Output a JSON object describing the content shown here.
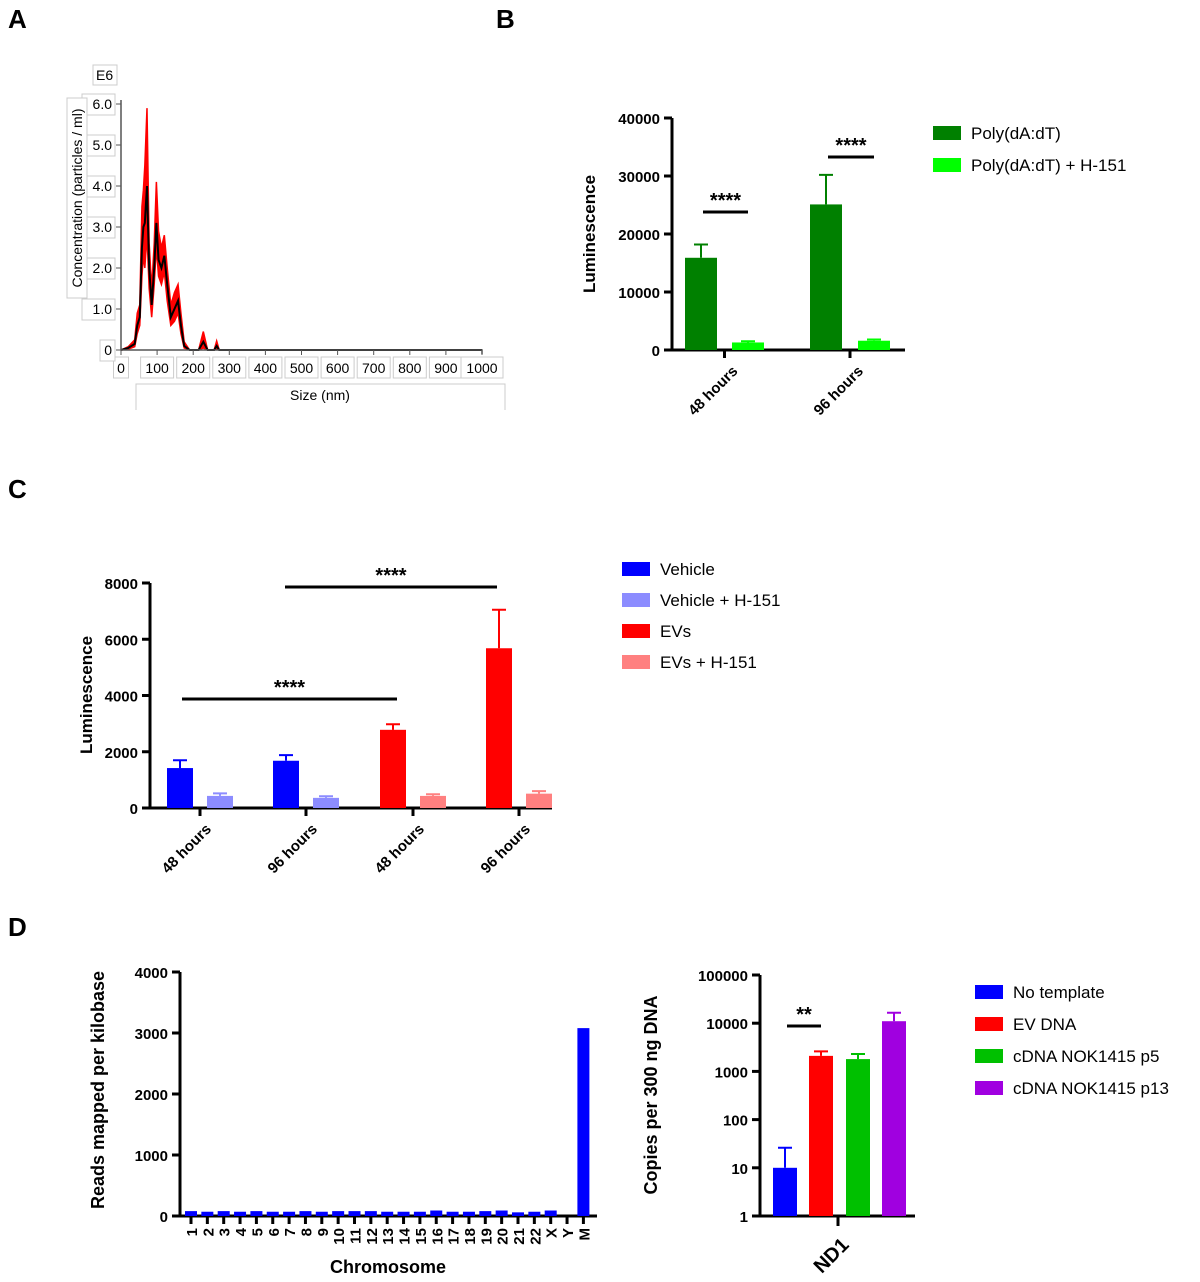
{
  "panels": {
    "A": "A",
    "B": "B",
    "C": "C",
    "D": "D"
  },
  "chart_data": [
    {
      "id": "A",
      "type": "area",
      "multiplier": "E6",
      "xlabel": "Size (nm)",
      "ylabel": "Concentration (particles / ml)",
      "xlim": [
        0,
        1000
      ],
      "ylim": [
        0,
        6.0
      ],
      "xticks": [
        "0",
        "100",
        "200",
        "300",
        "400",
        "500",
        "600",
        "700",
        "800",
        "900",
        "1000"
      ],
      "yticks": [
        "0",
        "1.0",
        "2.0",
        "3.0",
        "4.0",
        "5.0",
        "6.0"
      ],
      "line_color": "#000000",
      "band_color": "#ff0000",
      "x": [
        0,
        20,
        38,
        45,
        52,
        58,
        62,
        66,
        72,
        78,
        85,
        92,
        98,
        104,
        112,
        120,
        128,
        138,
        148,
        158,
        166,
        175,
        190,
        215,
        228,
        240,
        258,
        265,
        272,
        1000
      ],
      "mean": [
        0,
        0.05,
        0.15,
        0.6,
        0.8,
        2.5,
        3.0,
        3.1,
        4.0,
        2.0,
        1.1,
        2.0,
        3.1,
        2.2,
        2.0,
        2.3,
        1.6,
        0.8,
        1.0,
        1.2,
        0.6,
        0.1,
        0,
        0,
        0.2,
        0,
        0,
        0.1,
        0,
        0
      ],
      "upper": [
        0,
        0.08,
        0.25,
        0.9,
        1.1,
        3.5,
        3.9,
        4.5,
        5.9,
        2.6,
        1.5,
        2.6,
        4.1,
        2.9,
        2.5,
        2.8,
        2.0,
        1.1,
        1.4,
        1.6,
        0.9,
        0.2,
        0,
        0,
        0.45,
        0,
        0,
        0.22,
        0,
        0
      ],
      "lower": [
        0,
        0.02,
        0.08,
        0.4,
        0.6,
        1.8,
        2.3,
        2.0,
        2.8,
        1.5,
        0.8,
        1.6,
        2.5,
        1.8,
        1.6,
        1.9,
        1.2,
        0.6,
        0.7,
        0.9,
        0.4,
        0.05,
        0,
        0,
        0.05,
        0,
        0,
        0.02,
        0,
        0
      ]
    },
    {
      "id": "B",
      "type": "bar",
      "ylabel": "Luminescence",
      "ylim": [
        0,
        40000
      ],
      "yticks": [
        "0",
        "10000",
        "20000",
        "30000",
        "40000"
      ],
      "categories": [
        "48 hours",
        "96 hours"
      ],
      "series": [
        {
          "name": "Poly(dA:dT)",
          "color": "#008000",
          "values": [
            15900,
            25100
          ],
          "errors": [
            2300,
            5100
          ]
        },
        {
          "name": "Poly(dA:dT) + H-151",
          "color": "#00ff00",
          "values": [
            1300,
            1600
          ],
          "errors": [
            200,
            200
          ]
        }
      ],
      "significance": [
        {
          "label": "****",
          "between": [
            "48 hours"
          ]
        },
        {
          "label": "****",
          "between": [
            "96 hours"
          ]
        }
      ]
    },
    {
      "id": "C",
      "type": "bar",
      "ylabel": "Luminescence",
      "ylim": [
        0,
        8000
      ],
      "yticks": [
        "0",
        "2000",
        "4000",
        "6000",
        "8000"
      ],
      "categories": [
        "48 hours",
        "96 hours",
        "48 hours",
        "96 hours"
      ],
      "series": [
        {
          "name": "Vehicle",
          "color": "#0000ff"
        },
        {
          "name": "Vehicle + H-151",
          "color": "#8c8cff"
        },
        {
          "name": "EVs",
          "color": "#ff0000"
        },
        {
          "name": "EVs + H-151",
          "color": "#ff8080"
        }
      ],
      "bars": [
        {
          "series": 0,
          "value": 1420,
          "error": 280
        },
        {
          "series": 1,
          "value": 430,
          "error": 90
        },
        {
          "series": 0,
          "value": 1680,
          "error": 200
        },
        {
          "series": 1,
          "value": 360,
          "error": 60
        },
        {
          "series": 2,
          "value": 2780,
          "error": 200
        },
        {
          "series": 3,
          "value": 430,
          "error": 60
        },
        {
          "series": 2,
          "value": 5680,
          "error": 1370
        },
        {
          "series": 3,
          "value": 510,
          "error": 90
        }
      ],
      "significance": [
        {
          "label": "****",
          "from": "Vehicle 48 hours",
          "to": "EVs 48 hours"
        },
        {
          "label": "****",
          "from": "Vehicle 96 hours",
          "to": "EVs 96 hours"
        }
      ]
    },
    {
      "id": "D-left",
      "type": "bar",
      "xlabel": "Chromosome",
      "ylabel": "Reads mapped per kilobase",
      "ylim": [
        0,
        4000
      ],
      "yticks": [
        "0",
        "1000",
        "2000",
        "3000",
        "4000"
      ],
      "color": "#0000ff",
      "categories": [
        "1",
        "2",
        "3",
        "4",
        "5",
        "6",
        "7",
        "8",
        "9",
        "10",
        "11",
        "12",
        "13",
        "14",
        "15",
        "16",
        "17",
        "18",
        "19",
        "20",
        "21",
        "22",
        "X",
        "Y",
        "M"
      ],
      "values": [
        80,
        70,
        80,
        70,
        80,
        70,
        70,
        80,
        70,
        80,
        80,
        80,
        70,
        70,
        70,
        90,
        70,
        70,
        80,
        90,
        60,
        70,
        90,
        0,
        3080
      ]
    },
    {
      "id": "D-right",
      "type": "bar",
      "scale": "log",
      "ylabel": "Copies per 300 ng DNA",
      "ylim": [
        1,
        100000
      ],
      "yticks": [
        "1",
        "10",
        "100",
        "1000",
        "10000",
        "100000"
      ],
      "categories": [
        "ND1"
      ],
      "series": [
        {
          "name": "No template",
          "color": "#0000ff",
          "value": 10,
          "error_top": 26
        },
        {
          "name": "EV DNA",
          "color": "#ff0000",
          "value": 2100,
          "error_top": 2600
        },
        {
          "name": "cDNA NOK1415 p5",
          "color": "#00c000",
          "value": 1800,
          "error_top": 2300
        },
        {
          "name": "cDNA NOK1415 p13",
          "color": "#a000e0",
          "value": 11000,
          "error_top": 16500
        }
      ],
      "significance": [
        {
          "label": "**",
          "between": [
            "No template",
            "EV DNA"
          ]
        }
      ]
    }
  ]
}
